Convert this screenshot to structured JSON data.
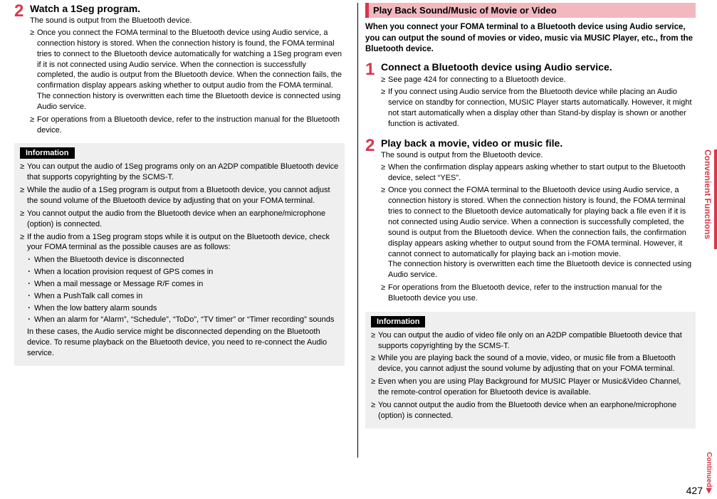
{
  "pageNumber": "427",
  "sideTab": "Convenient Functions",
  "continued": "Continued",
  "left": {
    "step2": {
      "num": "2",
      "title": "Watch a 1Seg program.",
      "sub": "The sound is output from the Bluetooth device.",
      "b1": "Once you connect the FOMA terminal to the Bluetooth device using Audio service, a connection history is stored. When the connection history is found, the FOMA terminal tries to connect to the Bluetooth device automatically for watching a 1Seg program even if it is not connected using Audio service. When the connection is successfully completed, the audio is output from the Bluetooth device. When the connection fails, the confirmation display appears asking whether to output audio from the FOMA terminal.",
      "b1a": "The connection history is overwritten each time the Bluetooth device is connected using Audio service.",
      "b2": "For operations from a Bluetooth device, refer to the instruction manual for the Bluetooth device."
    },
    "info": {
      "label": "Information",
      "i1": "You can output the audio of 1Seg programs only on an A2DP compatible Bluetooth device that supports copyrighting by the SCMS-T.",
      "i2": "While the audio of a 1Seg program is output from a Bluetooth device, you cannot adjust the sound volume of the Bluetooth device by adjusting that on your FOMA terminal.",
      "i3": "You cannot output the audio from the Bluetooth device when an earphone/microphone (option) is connected.",
      "i4": "If the audio from a 1Seg program stops while it is output on the Bluetooth device, check your FOMA terminal as the possible causes are as follows:",
      "d1": "When the Bluetooth device is disconnected",
      "d2": "When a location provision request of GPS comes in",
      "d3": "When a mail message or Message R/F comes in",
      "d4": "When a PushTalk call comes in",
      "d5": "When the low battery alarm sounds",
      "d6": "When an alarm for “Alarm”, “Schedule”, “ToDo”, “TV timer” or “Timer recording” sounds",
      "tail": "In these cases, the Audio service might be disconnected depending on the Bluetooth device. To resume playback on the Bluetooth device, you need to re-connect the Audio service."
    }
  },
  "right": {
    "heading": "Play Back Sound/Music of Movie or Video",
    "intro": "When you connect your FOMA terminal to a Bluetooth device using Audio service, you can output the sound of movies or video, music via MUSIC Player, etc., from the Bluetooth device.",
    "step1": {
      "num": "1",
      "title": "Connect a Bluetooth device using Audio service.",
      "b1": "See page 424 for connecting to a Bluetooth device.",
      "b2": "If you connect using Audio service from the Bluetooth device while placing an Audio service on standby for connection, MUSIC Player starts automatically. However, it might not start automatically when a display other than Stand-by display is shown or another function is activated."
    },
    "step2": {
      "num": "2",
      "title": "Play back a movie, video or music file.",
      "sub": "The sound is output from the Bluetooth device.",
      "b1": "When the confirmation display appears asking whether to start output to the Bluetooth device, select “YES”.",
      "b2": "Once you connect the FOMA terminal to the Bluetooth device using Audio service, a connection history is stored. When the connection history is found, the FOMA terminal tries to connect to the Bluetooth device automatically for playing back a file even if it is not connected using Audio service. When a connection is successfully completed, the sound is output from the Bluetooth device. When the connection fails, the confirmation display appears asking whether to output sound from the FOMA terminal. However, it cannot connect to automatically for playing back an i-motion movie.",
      "b2a": "The connection history is overwritten each time the Bluetooth device is connected using Audio service.",
      "b3": "For operations from the Bluetooth device, refer to the instruction manual for the Bluetooth device you use."
    },
    "info": {
      "label": "Information",
      "i1": "You can output the audio of video file only on an A2DP compatible Bluetooth device that supports copyrighting by the SCMS-T.",
      "i2": "While you are playing back the sound of a movie, video, or music file from a Bluetooth device, you cannot adjust the sound volume by adjusting that on your FOMA terminal.",
      "i3": "Even when you are using Play Background for MUSIC Player or Music&Video Channel, the remote-control operation for Bluetooth device is available.",
      "i4": "You cannot output the audio from the Bluetooth device when an earphone/microphone (option) is connected."
    }
  }
}
